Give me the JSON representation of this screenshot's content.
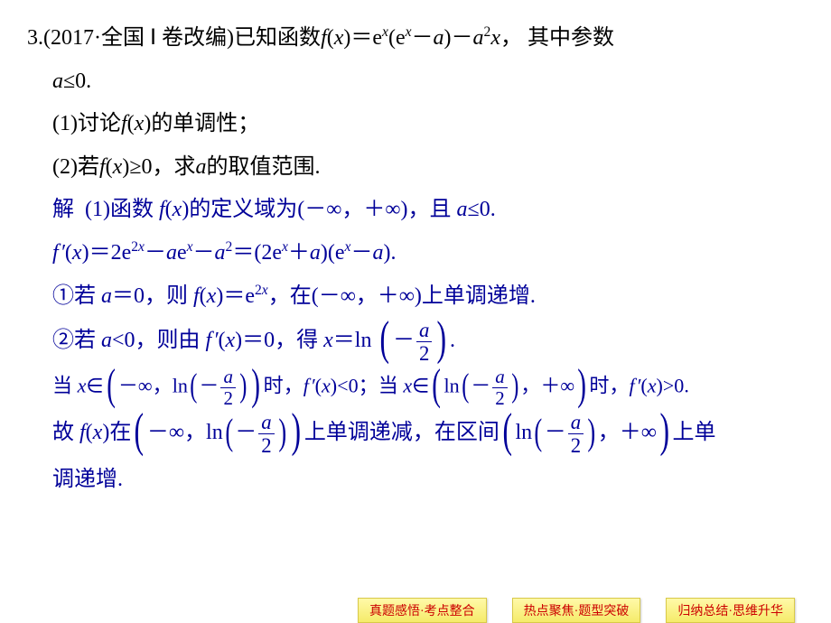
{
  "problem": {
    "number": "3.",
    "source": "(2017·全国 Ⅰ 卷改编)",
    "stem1a": "已知函数",
    "stem1b": "其中参数",
    "cond": "≤0.",
    "q1": "(1)讨论",
    "q1b": "的单调性；",
    "q2": "(2)若",
    "q2b": "≥0，求",
    "q2c": "的取值范围."
  },
  "solution": {
    "label": "解",
    "s1a": "(1)函数 ",
    "s1b": "的定义域为(－∞，＋∞)，且 ",
    "s1c": "≤0.",
    "s2": "＝2e",
    "s2b": "e",
    "s2c": "＝(2e",
    "s2d": ")(e",
    "s2e": ").",
    "s3a": "①若 ",
    "s3b": "＝0，则 ",
    "s3c": "＝e",
    "s3d": "，在(－∞，＋∞)上单调递增.",
    "s4a": "②若 ",
    "s4b": "<0，则由 ",
    "s4c": "＝0，得 ",
    "s4d": "＝ln",
    "s5a": "当 ",
    "s5b": "∈",
    "s5c": "－∞，ln",
    "s5d": "时，",
    "s5e": "<0；当 ",
    "s5f": "∈",
    "s5g": "ln",
    "s5h": "，＋∞",
    "s5i": "时，",
    "s5j": ">0.",
    "s6a": "故 ",
    "s6b": "在",
    "s6c": "－∞，ln",
    "s6d": "上单调递减，在区间",
    "s6e": "ln",
    "s6f": "，＋∞",
    "s6g": "上单",
    "s6h": "调递增."
  },
  "footer": {
    "b1": "真题感悟·考点整合",
    "b2": "热点聚焦·题型突破",
    "b3": "归纳总结·思维升华"
  },
  "colors": {
    "text_black": "#000000",
    "text_blue": "#000099",
    "footer_text": "#cc0000",
    "footer_bg_top": "#fff9a8",
    "footer_bg_bottom": "#f5eb6a",
    "background": "#ffffff"
  }
}
